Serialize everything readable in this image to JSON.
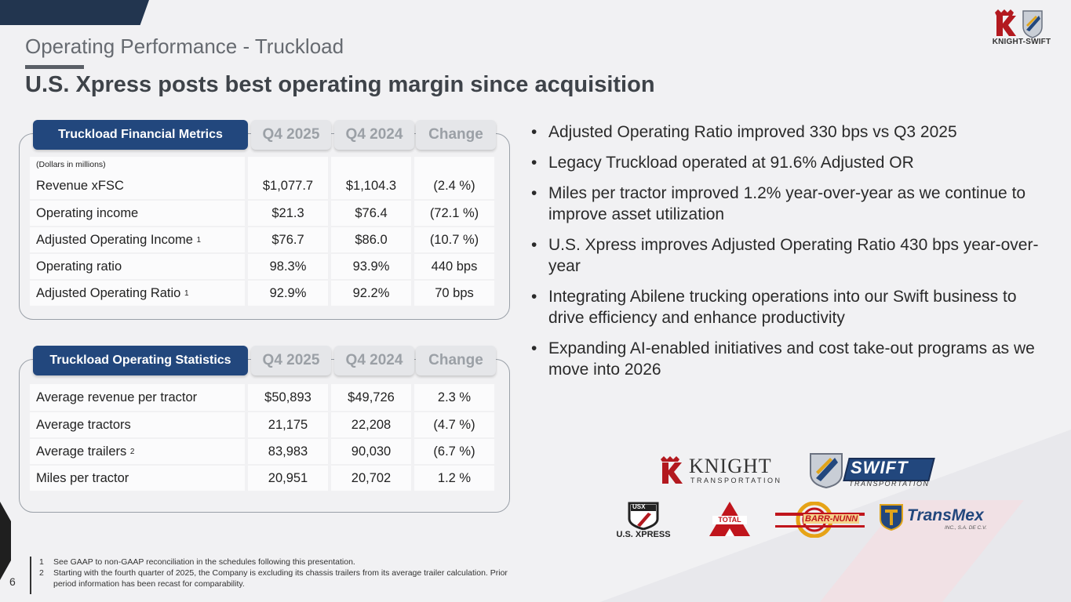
{
  "page": {
    "section_title": "Operating Performance - Truckload",
    "headline": "U.S. Xpress posts best operating margin since acquisition",
    "logo_text": "KNIGHT-SWIFT",
    "page_number": "6"
  },
  "financial": {
    "headers": [
      "Truckload Financial Metrics",
      "Q4 2025",
      "Q4 2024",
      "Change"
    ],
    "units_note": "(Dollars in millions)",
    "rows": [
      {
        "label": "Revenue xFSC",
        "sup": "",
        "q4_2025": "$1,077.7",
        "q4_2024": "$1,104.3",
        "change": "(2.4 %)"
      },
      {
        "label": "Operating income",
        "sup": "",
        "q4_2025": "$21.3",
        "q4_2024": "$76.4",
        "change": "(72.1 %)"
      },
      {
        "label": "Adjusted Operating Income",
        "sup": "1",
        "q4_2025": "$76.7",
        "q4_2024": "$86.0",
        "change": "(10.7 %)"
      },
      {
        "label": "Operating ratio",
        "sup": "",
        "q4_2025": "98.3%",
        "q4_2024": "93.9%",
        "change": "440 bps"
      },
      {
        "label": "Adjusted Operating Ratio",
        "sup": "1",
        "q4_2025": "92.9%",
        "q4_2024": "92.2%",
        "change": "70 bps"
      }
    ]
  },
  "operating": {
    "headers": [
      "Truckload Operating Statistics",
      "Q4 2025",
      "Q4 2024",
      "Change"
    ],
    "rows": [
      {
        "label": "Average revenue per tractor",
        "sup": "",
        "q4_2025": "$50,893",
        "q4_2024": "$49,726",
        "change": "2.3 %"
      },
      {
        "label": "Average tractors",
        "sup": "",
        "q4_2025": "21,175",
        "q4_2024": "22,208",
        "change": "(4.7 %)"
      },
      {
        "label": "Average trailers",
        "sup": "2",
        "q4_2025": "83,983",
        "q4_2024": "90,030",
        "change": "(6.7 %)"
      },
      {
        "label": "Miles per tractor",
        "sup": "",
        "q4_2025": "20,951",
        "q4_2024": "20,702",
        "change": "1.2 %"
      }
    ]
  },
  "bullets": [
    "Adjusted Operating Ratio improved 330 bps vs Q3 2025",
    "Legacy Truckload operated at 91.6% Adjusted OR",
    "Miles per tractor improved 1.2% year-over-year as we continue to improve asset utilization",
    "U.S. Xpress improves Adjusted Operating Ratio 430 bps year-over-year",
    "Integrating Abilene trucking operations into our Swift business to drive efficiency and enhance productivity",
    "Expanding AI-enabled initiatives and cost take-out programs as we move into 2026"
  ],
  "brands": {
    "knight": {
      "name": "KNIGHT",
      "sub": "TRANSPORTATION"
    },
    "swift": {
      "name": "SWIFT",
      "sub": "TRANSPORTATION"
    },
    "usx": {
      "badge": "USX",
      "name": "U.S. XPRESS"
    },
    "total": {
      "name": "TOTAL"
    },
    "barr": {
      "name": "BARR-NUNN"
    },
    "transmex": {
      "name": "TransMex",
      "sub": "INC., S.A. DE C.V."
    }
  },
  "footnotes": [
    {
      "num": "1",
      "text": "See GAAP to non-GAAP reconciliation in the schedules following this presentation."
    },
    {
      "num": "2",
      "text": "Starting with the fourth quarter of 2025, the Company is excluding its chassis trailers from its average trailer calculation.  Prior period information has been recast for comparability."
    }
  ],
  "colors": {
    "navy": "#22477d",
    "dark_navy": "#22354f",
    "brand_red": "#b3191f"
  }
}
